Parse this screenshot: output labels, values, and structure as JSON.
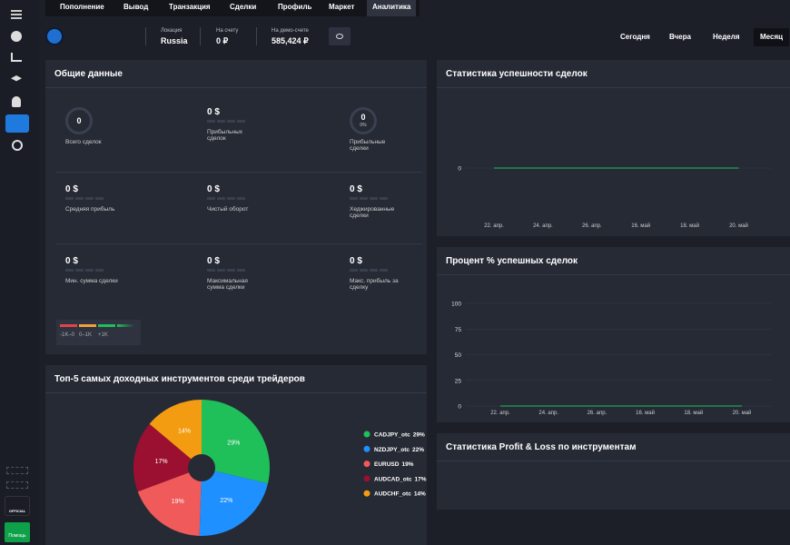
{
  "nav": {
    "tabs": [
      "Пополнение",
      "Вывод",
      "Транзакция",
      "Сделки",
      "Профиль",
      "Маркет",
      "Аналитика"
    ],
    "active": 6
  },
  "account": {
    "location_label": "Локация",
    "location": "Russia",
    "balance_label": "На счету",
    "balance": "0 ₽",
    "demo_label": "На демо-счете",
    "demo": "585,424 ₽"
  },
  "periods": {
    "items": [
      "Сегодня",
      "Вчера",
      "Неделя",
      "Месяц"
    ],
    "active": 3
  },
  "general": {
    "title": "Общие данные",
    "stats": [
      {
        "value": "0",
        "label": "Всего сделок",
        "ring": true
      },
      {
        "value": "0 $",
        "label": "Прибыльных сделок"
      },
      {
        "value": "0",
        "sub": "0%",
        "label": "Прибыльные сделки",
        "ring": true
      },
      {
        "value": "0 $",
        "label": "Средняя прибыль"
      },
      {
        "value": "0 $",
        "label": "Чистый оборот"
      },
      {
        "value": "0 $",
        "label": "Хеджированные сделки"
      },
      {
        "value": "0 $",
        "label": "Мин. сумма сделки"
      },
      {
        "value": "0 $",
        "label": "Максимальная сумма сделки"
      },
      {
        "value": "0 $",
        "label": "Макс. прибыль за сделку"
      }
    ],
    "legend": [
      "-1K–0",
      "0–1K",
      "+1K"
    ]
  },
  "pnl": {
    "title": "Статистика Profit & Loss по инструментам"
  },
  "sidebar": {
    "official": "OFFICIAL",
    "help": "Помощь"
  },
  "chart_data": [
    {
      "type": "pie",
      "title": "Топ-5 самых доходных инструментов среди трейдеров",
      "categories": [
        "CADJPY_otc",
        "NZDJPY_otc",
        "EURUSD",
        "AUDCAD_otc",
        "AUDCHF_otc"
      ],
      "values": [
        29,
        22,
        19,
        17,
        14
      ],
      "value_labels": [
        "29%",
        "22%",
        "19%",
        "17%",
        "14%"
      ],
      "colors": [
        "#1fbf5a",
        "#1e90ff",
        "#f05a5a",
        "#9b1030",
        "#f39c12"
      ]
    },
    {
      "type": "line",
      "title": "Статистика успешности сделок",
      "categories": [
        "22. апр.",
        "24. апр.",
        "26. апр.",
        "16. май",
        "18. май",
        "20. май"
      ],
      "series": [
        {
          "color": "#1fbf5a",
          "values": [
            0,
            0,
            0,
            0,
            0,
            0
          ]
        }
      ],
      "ylim": [
        -1,
        1
      ],
      "yticks": [
        0
      ]
    },
    {
      "type": "line",
      "title": "Процент % успешных сделок",
      "categories": [
        "22. апр.",
        "24. апр.",
        "26. апр.",
        "16. май",
        "18. май",
        "20. май"
      ],
      "series": [
        {
          "color": "#1fbf5a",
          "values": [
            0,
            0,
            0,
            0,
            0,
            0
          ]
        }
      ],
      "ylim": [
        0,
        100
      ],
      "yticks": [
        0,
        25,
        50,
        75,
        100
      ],
      "grid": true
    }
  ]
}
